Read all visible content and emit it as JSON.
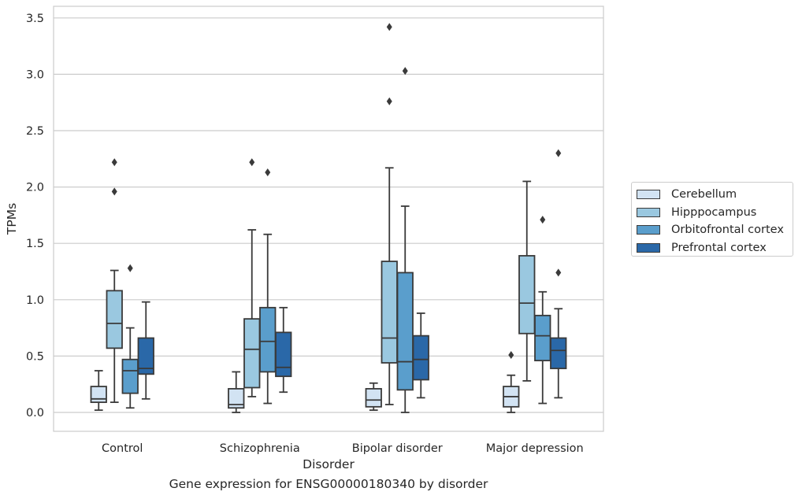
{
  "chart_data": {
    "type": "box",
    "title": "",
    "caption": "Gene expression for ENSG00000180340 by disorder",
    "xlabel": "Disorder",
    "ylabel": "TPMs",
    "ylim": [
      -0.17,
      3.6
    ],
    "yticks": [
      "0.0",
      "0.5",
      "1.0",
      "1.5",
      "2.0",
      "2.5",
      "3.0",
      "3.5"
    ],
    "grid": "horizontal",
    "legend_position": "right",
    "categories": [
      "Control",
      "Schizophrenia",
      "Bipolar disorder",
      "Major depression"
    ],
    "series": [
      {
        "name": "Cerebellum",
        "color": "#d2e3f3",
        "boxes": [
          {
            "whisker_low": 0.02,
            "q1": 0.09,
            "median": 0.12,
            "q3": 0.23,
            "whisker_high": 0.37,
            "outliers": []
          },
          {
            "whisker_low": 0.0,
            "q1": 0.04,
            "median": 0.07,
            "q3": 0.21,
            "whisker_high": 0.36,
            "outliers": []
          },
          {
            "whisker_low": 0.02,
            "q1": 0.05,
            "median": 0.11,
            "q3": 0.21,
            "whisker_high": 0.26,
            "outliers": []
          },
          {
            "whisker_low": 0.0,
            "q1": 0.05,
            "median": 0.14,
            "q3": 0.23,
            "whisker_high": 0.33,
            "outliers": [
              0.51
            ]
          }
        ]
      },
      {
        "name": "Hipppocampus",
        "color": "#9ac8e0",
        "boxes": [
          {
            "whisker_low": 0.09,
            "q1": 0.57,
            "median": 0.79,
            "q3": 1.08,
            "whisker_high": 1.26,
            "outliers": [
              1.96,
              2.22
            ]
          },
          {
            "whisker_low": 0.14,
            "q1": 0.22,
            "median": 0.56,
            "q3": 0.83,
            "whisker_high": 1.62,
            "outliers": [
              2.22
            ]
          },
          {
            "whisker_low": 0.07,
            "q1": 0.44,
            "median": 0.66,
            "q3": 1.34,
            "whisker_high": 2.17,
            "outliers": [
              2.76,
              3.42
            ]
          },
          {
            "whisker_low": 0.28,
            "q1": 0.7,
            "median": 0.97,
            "q3": 1.39,
            "whisker_high": 2.05,
            "outliers": []
          }
        ]
      },
      {
        "name": "Orbitofrontal cortex",
        "color": "#5a9ecc",
        "boxes": [
          {
            "whisker_low": 0.04,
            "q1": 0.17,
            "median": 0.37,
            "q3": 0.47,
            "whisker_high": 0.75,
            "outliers": [
              1.28
            ]
          },
          {
            "whisker_low": 0.08,
            "q1": 0.36,
            "median": 0.63,
            "q3": 0.93,
            "whisker_high": 1.58,
            "outliers": [
              2.13
            ]
          },
          {
            "whisker_low": 0.0,
            "q1": 0.2,
            "median": 0.45,
            "q3": 1.24,
            "whisker_high": 1.83,
            "outliers": [
              3.03
            ]
          },
          {
            "whisker_low": 0.08,
            "q1": 0.46,
            "median": 0.68,
            "q3": 0.86,
            "whisker_high": 1.07,
            "outliers": [
              1.71
            ]
          }
        ]
      },
      {
        "name": "Prefrontal cortex",
        "color": "#2a68a8",
        "boxes": [
          {
            "whisker_low": 0.12,
            "q1": 0.34,
            "median": 0.39,
            "q3": 0.66,
            "whisker_high": 0.98,
            "outliers": []
          },
          {
            "whisker_low": 0.18,
            "q1": 0.32,
            "median": 0.4,
            "q3": 0.71,
            "whisker_high": 0.93,
            "outliers": []
          },
          {
            "whisker_low": 0.13,
            "q1": 0.29,
            "median": 0.47,
            "q3": 0.68,
            "whisker_high": 0.88,
            "outliers": []
          },
          {
            "whisker_low": 0.13,
            "q1": 0.39,
            "median": 0.55,
            "q3": 0.66,
            "whisker_high": 0.92,
            "outliers": [
              1.24,
              2.3
            ]
          }
        ]
      }
    ]
  }
}
